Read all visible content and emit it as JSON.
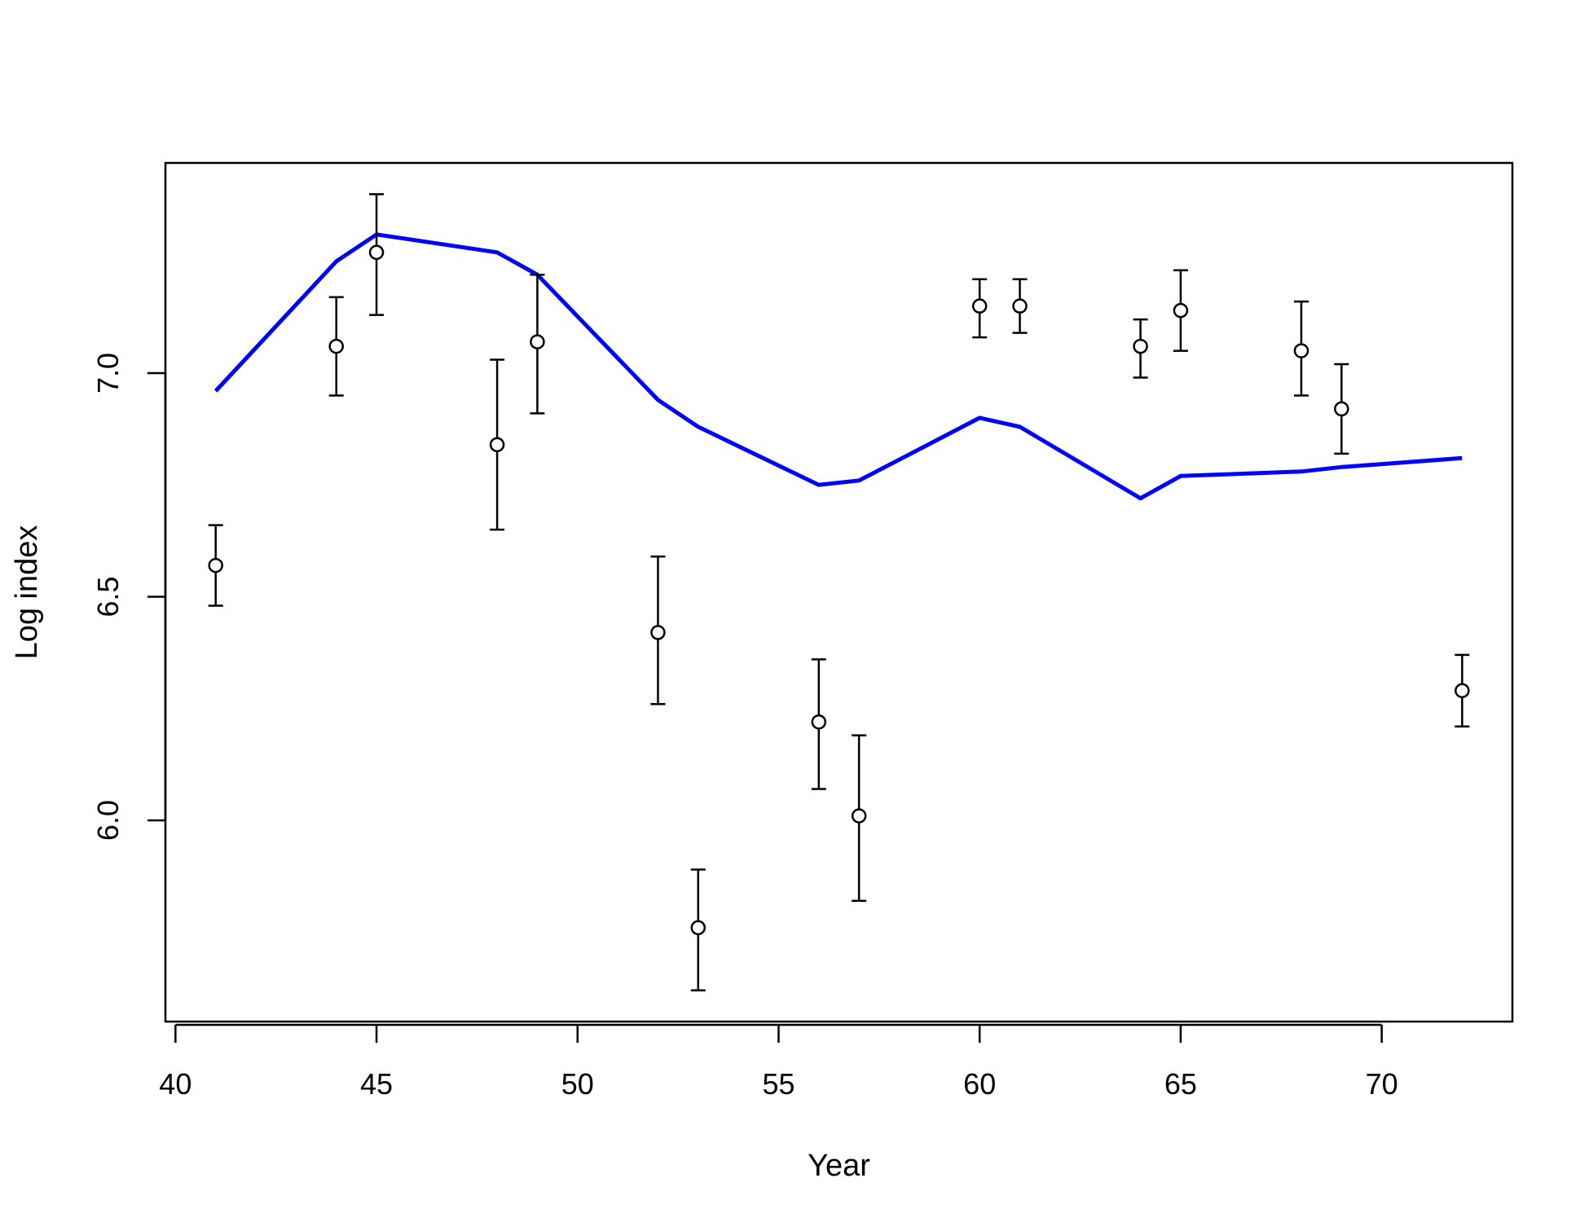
{
  "chart_data": {
    "type": "scatter",
    "title": "",
    "xlabel": "Year",
    "ylabel": "Log index",
    "xlim": [
      39.75,
      73.25
    ],
    "ylim": [
      5.55,
      7.47
    ],
    "x_ticks": [
      40,
      45,
      50,
      55,
      60,
      65,
      70
    ],
    "y_ticks": [
      6.0,
      6.5,
      7.0
    ],
    "x_tick_labels": [
      "40",
      "45",
      "50",
      "55",
      "60",
      "65",
      "70"
    ],
    "y_tick_labels": [
      "6.0",
      "6.5",
      "7.0"
    ],
    "grid": false,
    "legend": "none",
    "series": [
      {
        "kind": "points-with-error-bars",
        "color": "#000000",
        "points": [
          {
            "x": 41,
            "y": 6.57,
            "lo": 6.48,
            "hi": 6.66
          },
          {
            "x": 44,
            "y": 7.06,
            "lo": 6.95,
            "hi": 7.17
          },
          {
            "x": 45,
            "y": 7.27,
            "lo": 7.13,
            "hi": 7.4
          },
          {
            "x": 48,
            "y": 6.84,
            "lo": 6.65,
            "hi": 7.03
          },
          {
            "x": 49,
            "y": 7.07,
            "lo": 6.91,
            "hi": 7.22
          },
          {
            "x": 52,
            "y": 6.42,
            "lo": 6.26,
            "hi": 6.59
          },
          {
            "x": 53,
            "y": 5.76,
            "lo": 5.62,
            "hi": 5.89
          },
          {
            "x": 56,
            "y": 6.22,
            "lo": 6.07,
            "hi": 6.36
          },
          {
            "x": 57,
            "y": 6.01,
            "lo": 5.82,
            "hi": 6.19
          },
          {
            "x": 60,
            "y": 7.15,
            "lo": 7.08,
            "hi": 7.21
          },
          {
            "x": 61,
            "y": 7.15,
            "lo": 7.09,
            "hi": 7.21
          },
          {
            "x": 64,
            "y": 7.06,
            "lo": 6.99,
            "hi": 7.12
          },
          {
            "x": 65,
            "y": 7.14,
            "lo": 7.05,
            "hi": 7.23
          },
          {
            "x": 68,
            "y": 7.05,
            "lo": 6.95,
            "hi": 7.16
          },
          {
            "x": 69,
            "y": 6.92,
            "lo": 6.82,
            "hi": 7.02
          },
          {
            "x": 72,
            "y": 6.29,
            "lo": 6.21,
            "hi": 6.37
          }
        ]
      },
      {
        "kind": "line",
        "color": "#0000ff",
        "x": [
          41,
          44,
          45,
          48,
          49,
          52,
          53,
          56,
          57,
          60,
          61,
          64,
          65,
          68,
          69,
          72
        ],
        "y": [
          6.96,
          7.25,
          7.31,
          7.27,
          7.22,
          6.94,
          6.88,
          6.75,
          6.76,
          6.9,
          6.88,
          6.72,
          6.77,
          6.78,
          6.79,
          6.81
        ]
      }
    ]
  }
}
